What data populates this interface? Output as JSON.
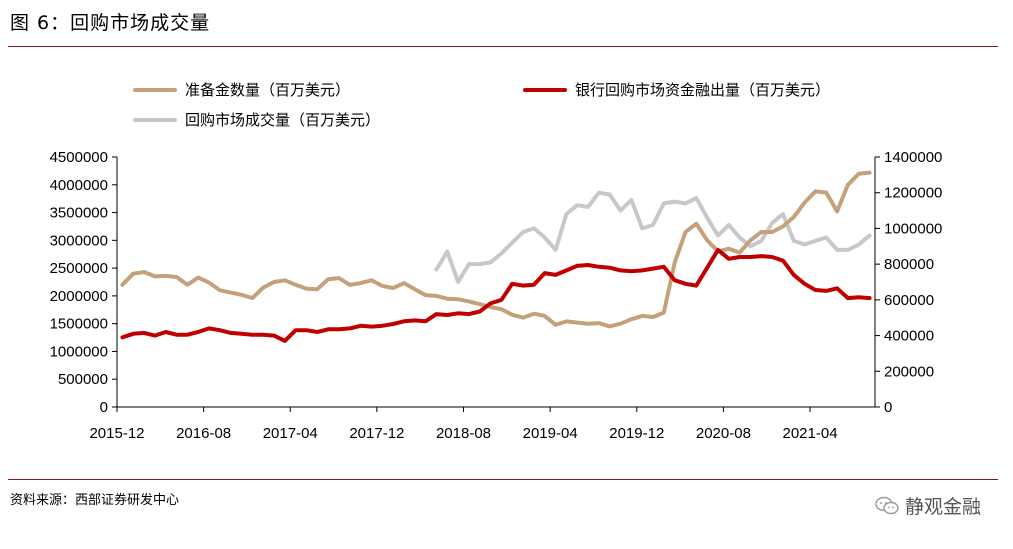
{
  "header": {
    "title": "图 6：回购市场成交量"
  },
  "footer": {
    "source": "资料来源：西部证券研发中心",
    "watermark": "静观金融"
  },
  "chart_data": {
    "type": "line",
    "x_ticks": [
      "2015-12",
      "2016-08",
      "2017-04",
      "2017-12",
      "2018-08",
      "2019-04",
      "2019-12",
      "2020-08",
      "2021-04"
    ],
    "left_axis": {
      "ticks": [
        "4500000",
        "4000000",
        "3500000",
        "3000000",
        "2500000",
        "2000000",
        "1500000",
        "1000000",
        "500000",
        "0"
      ],
      "ylim": [
        0,
        4500000
      ]
    },
    "right_axis": {
      "ticks": [
        "1400000",
        "1200000",
        "1000000",
        "800000",
        "600000",
        "400000",
        "200000",
        "0"
      ],
      "ylim": [
        0,
        1400000
      ]
    },
    "legend_placement": "top",
    "series": [
      {
        "name": "准备金数量（百万美元）",
        "axis": "left",
        "color": "#c4a17a",
        "x": [
          0,
          1,
          2,
          3,
          4,
          5,
          6,
          7,
          8,
          9,
          10,
          11,
          12,
          13,
          14,
          15,
          16,
          17,
          18,
          19,
          20,
          21,
          22,
          23,
          24,
          25,
          26,
          27,
          28,
          29,
          30,
          31,
          32,
          33,
          34,
          35,
          36,
          37,
          38,
          39,
          40,
          41,
          42,
          43,
          44,
          45,
          46,
          47,
          48,
          49,
          50,
          51,
          52,
          53,
          54,
          55,
          56,
          57,
          58,
          59,
          60,
          61,
          62,
          63,
          64,
          65,
          66,
          67,
          68,
          69
        ],
        "values": [
          2200000,
          2400000,
          2430000,
          2350000,
          2360000,
          2340000,
          2200000,
          2330000,
          2240000,
          2100000,
          2060000,
          2020000,
          1960000,
          2150000,
          2250000,
          2280000,
          2200000,
          2130000,
          2120000,
          2300000,
          2320000,
          2200000,
          2230000,
          2280000,
          2180000,
          2140000,
          2230000,
          2120000,
          2010000,
          2000000,
          1950000,
          1940000,
          1900000,
          1850000,
          1800000,
          1760000,
          1660000,
          1610000,
          1680000,
          1640000,
          1480000,
          1540000,
          1520000,
          1500000,
          1510000,
          1450000,
          1500000,
          1580000,
          1640000,
          1620000,
          1700000,
          2600000,
          3150000,
          3300000,
          3000000,
          2800000,
          2850000,
          2780000,
          3000000,
          3150000,
          3150000,
          3250000,
          3420000,
          3680000,
          3880000,
          3860000,
          3520000,
          4000000,
          4200000,
          4220000
        ]
      },
      {
        "name": "银行回购市场资金融出量（百万美元）",
        "axis": "right",
        "color": "#c00000",
        "x": [
          0,
          1,
          2,
          3,
          4,
          5,
          6,
          7,
          8,
          9,
          10,
          11,
          12,
          13,
          14,
          15,
          16,
          17,
          18,
          19,
          20,
          21,
          22,
          23,
          24,
          25,
          26,
          27,
          28,
          29,
          30,
          31,
          32,
          33,
          34,
          35,
          36,
          37,
          38,
          39,
          40,
          41,
          42,
          43,
          44,
          45,
          46,
          47,
          48,
          49,
          50,
          51,
          52,
          53,
          54,
          55,
          56,
          57,
          58,
          59,
          60,
          61,
          62,
          63,
          64,
          65,
          66,
          67,
          68,
          69
        ],
        "values": [
          390000,
          410000,
          415000,
          400000,
          420000,
          405000,
          405000,
          420000,
          440000,
          430000,
          415000,
          410000,
          405000,
          405000,
          400000,
          370000,
          430000,
          430000,
          420000,
          435000,
          435000,
          440000,
          455000,
          450000,
          455000,
          465000,
          480000,
          485000,
          480000,
          520000,
          515000,
          525000,
          520000,
          535000,
          580000,
          600000,
          690000,
          680000,
          685000,
          750000,
          740000,
          765000,
          790000,
          795000,
          785000,
          780000,
          765000,
          760000,
          765000,
          775000,
          785000,
          710000,
          690000,
          680000,
          780000,
          880000,
          830000,
          840000,
          840000,
          845000,
          840000,
          820000,
          740000,
          690000,
          655000,
          650000,
          665000,
          610000,
          615000,
          610000
        ]
      },
      {
        "name": "回购市场成交量（百万美元）",
        "axis": "right",
        "color": "#c8c8c8",
        "x": [
          29,
          30,
          31,
          32,
          33,
          34,
          35,
          36,
          37,
          38,
          39,
          40,
          41,
          42,
          43,
          44,
          45,
          46,
          47,
          48,
          49,
          50,
          51,
          52,
          53,
          54,
          55,
          56,
          57,
          58,
          59,
          60,
          61,
          62,
          63,
          64,
          65,
          66,
          67,
          68,
          69
        ],
        "values": [
          770000,
          870000,
          700000,
          800000,
          800000,
          810000,
          860000,
          920000,
          980000,
          1000000,
          950000,
          880000,
          1080000,
          1130000,
          1120000,
          1200000,
          1190000,
          1100000,
          1160000,
          1000000,
          1020000,
          1140000,
          1150000,
          1140000,
          1170000,
          1060000,
          960000,
          1020000,
          950000,
          900000,
          930000,
          1030000,
          1080000,
          930000,
          910000,
          930000,
          950000,
          880000,
          880000,
          910000,
          960000
        ]
      }
    ]
  }
}
